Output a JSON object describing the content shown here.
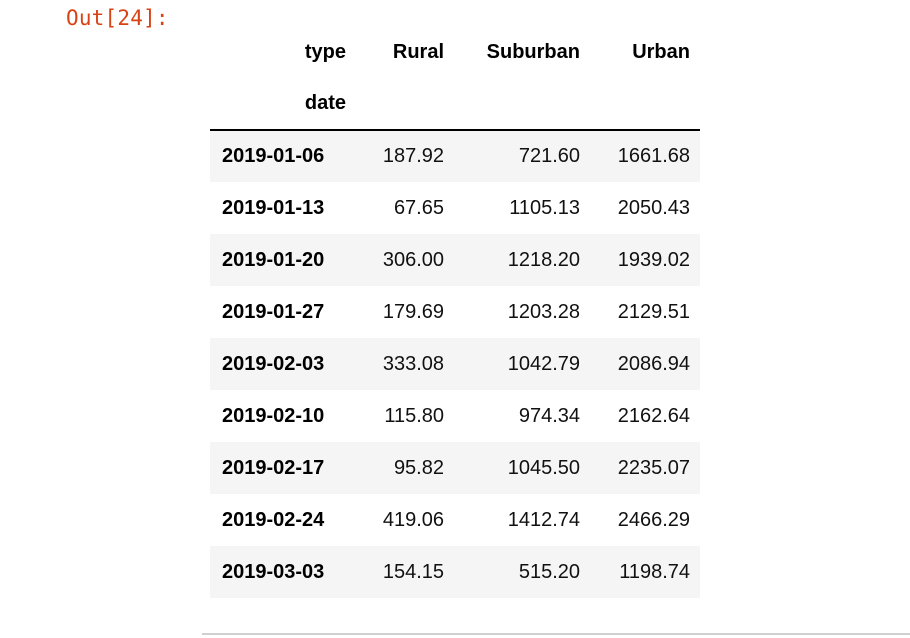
{
  "output": {
    "prompt": "Out[24]:"
  },
  "table": {
    "columns_name": "type",
    "index_name": "date",
    "columns": [
      "Rural",
      "Suburban",
      "Urban"
    ],
    "rows": [
      {
        "index": "2019-01-06",
        "values": [
          "187.92",
          "721.60",
          "1661.68"
        ]
      },
      {
        "index": "2019-01-13",
        "values": [
          "67.65",
          "1105.13",
          "2050.43"
        ]
      },
      {
        "index": "2019-01-20",
        "values": [
          "306.00",
          "1218.20",
          "1939.02"
        ]
      },
      {
        "index": "2019-01-27",
        "values": [
          "179.69",
          "1203.28",
          "2129.51"
        ]
      },
      {
        "index": "2019-02-03",
        "values": [
          "333.08",
          "1042.79",
          "2086.94"
        ]
      },
      {
        "index": "2019-02-10",
        "values": [
          "115.80",
          "974.34",
          "2162.64"
        ]
      },
      {
        "index": "2019-02-17",
        "values": [
          "95.82",
          "1045.50",
          "2235.07"
        ]
      },
      {
        "index": "2019-02-24",
        "values": [
          "419.06",
          "1412.74",
          "2466.29"
        ]
      },
      {
        "index": "2019-03-03",
        "values": [
          "154.15",
          "515.20",
          "1198.74"
        ]
      }
    ]
  },
  "colors": {
    "prompt": "#d84315",
    "row_stripe": "#f5f5f5",
    "header_rule": "#000000"
  }
}
